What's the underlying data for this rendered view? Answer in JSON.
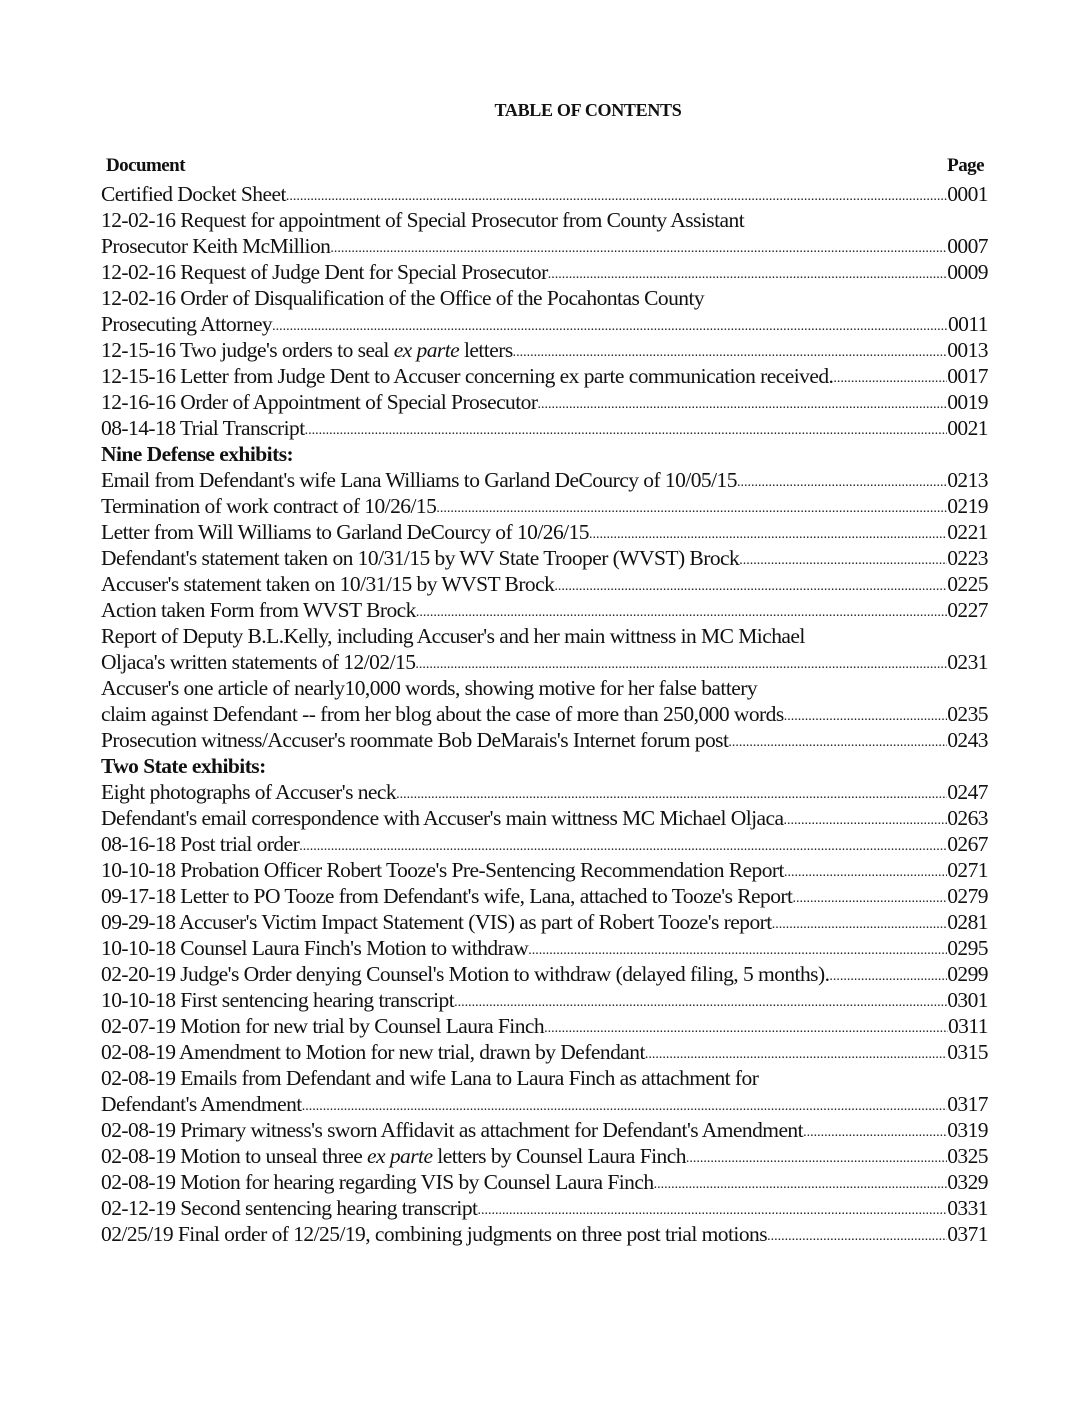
{
  "title": "TABLE OF CONTENTS",
  "header": {
    "document": "Document",
    "page": "Page"
  },
  "items": [
    {
      "lines": [
        "Certified Docket Sheet"
      ],
      "page": "0001"
    },
    {
      "lines": [
        "12-02-16 Request for appointment of Special Prosecutor from County Assistant",
        "Prosecutor Keith McMillion"
      ],
      "page": "0007"
    },
    {
      "lines": [
        "12-02-16 Request of Judge Dent for Special Prosecutor"
      ],
      "page": "0009"
    },
    {
      "lines": [
        "12-02-16 Order of Disqualification of the Office of the Pocahontas County",
        "Prosecuting Attorney"
      ],
      "page": "0011"
    },
    {
      "pre": "12-15-16  Two judge's orders to seal ",
      "em": "ex parte",
      "post": " letters",
      "page": "0013"
    },
    {
      "lines": [
        "12-15-16 Letter from Judge Dent to Accuser concerning ex parte communication received."
      ],
      "page": "0017"
    },
    {
      "lines": [
        "12-16-16 Order of Appointment of Special Prosecutor"
      ],
      "page": "0019"
    },
    {
      "lines": [
        "08-14-18 Trial Transcript"
      ],
      "page": "0021"
    },
    {
      "section": "Nine Defense exhibits:"
    },
    {
      "lines": [
        "Email from Defendant's wife Lana Williams to Garland DeCourcy of 10/05/15"
      ],
      "page": "0213"
    },
    {
      "lines": [
        "Termination of work contract of 10/26/15"
      ],
      "page": "0219"
    },
    {
      "lines": [
        "Letter from Will Williams to Garland DeCourcy of 10/26/15"
      ],
      "page": "0221"
    },
    {
      "lines": [
        "Defendant's statement taken on 10/31/15 by WV State Trooper (WVST) Brock"
      ],
      "page": "0223"
    },
    {
      "lines": [
        "Accuser's statement taken on 10/31/15 by WVST Brock"
      ],
      "page": "0225"
    },
    {
      "lines": [
        "Action taken Form from WVST Brock"
      ],
      "page": "0227"
    },
    {
      "lines": [
        "Report of Deputy B.L.Kelly, including Accuser's and her main wittness in MC Michael",
        "Oljaca's written statements of 12/02/15"
      ],
      "page": "0231"
    },
    {
      "lines": [
        "Accuser's one article of nearly10,000 words, showing motive for her false battery",
        "claim against Defendant -- from her blog about the case of more than 250,000 words"
      ],
      "page": "0235"
    },
    {
      "lines": [
        "Prosecution witness/Accuser's roommate Bob DeMarais's Internet forum post"
      ],
      "page": "0243"
    },
    {
      "section": "Two State exhibits:"
    },
    {
      "lines": [
        "Eight photographs of Accuser's neck"
      ],
      "page": "0247"
    },
    {
      "lines": [
        "Defendant's email correspondence with Accuser's main wittness MC Michael Oljaca"
      ],
      "page": "0263"
    },
    {
      "lines": [
        "08-16-18 Post trial order"
      ],
      "page": "0267"
    },
    {
      "lines": [
        "10-10-18 Probation Officer Robert Tooze's Pre-Sentencing Recommendation Report"
      ],
      "page": "0271"
    },
    {
      "lines": [
        "09-17-18 Letter to PO Tooze from Defendant's wife, Lana, attached to Tooze's Report"
      ],
      "page": "0279"
    },
    {
      "lines": [
        "09-29-18 Accuser's Victim Impact Statement (VIS) as part of Robert Tooze's report"
      ],
      "page": "0281"
    },
    {
      "lines": [
        "10-10-18 Counsel Laura Finch's Motion to withdraw"
      ],
      "page": "0295"
    },
    {
      "lines": [
        "02-20-19 Judge's Order denying Counsel's Motion to withdraw (delayed filing, 5 months)."
      ],
      "page": "0299"
    },
    {
      "lines": [
        "10-10-18 First sentencing hearing transcript"
      ],
      "page": "0301"
    },
    {
      "lines": [
        "02-07-19 Motion for new trial by Counsel Laura Finch"
      ],
      "page": "0311"
    },
    {
      "lines": [
        "02-08-19 Amendment to Motion for new trial, drawn by Defendant"
      ],
      "page": "0315"
    },
    {
      "lines": [
        "02-08-19 Emails from Defendant and wife Lana to Laura Finch as attachment for",
        "Defendant's Amendment"
      ],
      "page": "0317"
    },
    {
      "lines": [
        "02-08-19 Primary witness's sworn Affidavit as attachment for Defendant's Amendment"
      ],
      "page": "0319"
    },
    {
      "pre": "02-08-19 Motion to unseal three ",
      "em": "ex parte",
      "post": " letters by Counsel Laura Finch",
      "page": "0325"
    },
    {
      "lines": [
        "02-08-19 Motion for hearing regarding VIS by Counsel Laura Finch"
      ],
      "page": "0329"
    },
    {
      "lines": [
        "02-12-19 Second sentencing hearing transcript"
      ],
      "page": "0331"
    },
    {
      "lines": [
        "02/25/19  Final order of 12/25/19, combining judgments on three post trial motions"
      ],
      "page": "0371"
    }
  ]
}
